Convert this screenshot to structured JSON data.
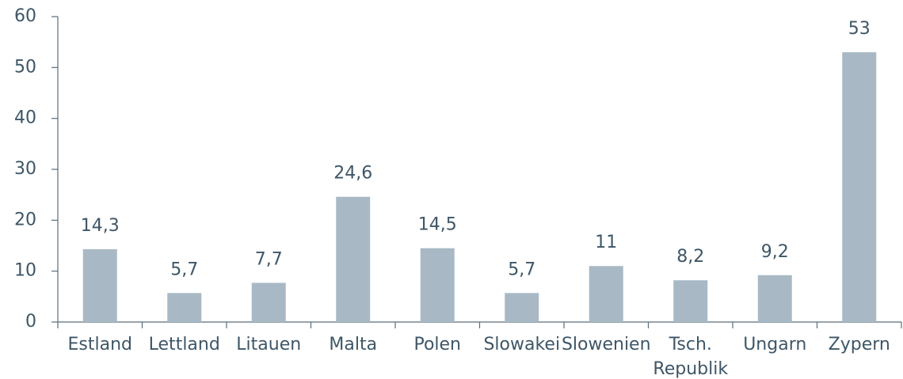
{
  "chart_data": {
    "type": "bar",
    "categories": [
      "Estland",
      "Lettland",
      "Litauen",
      "Malta",
      "Polen",
      "Slowakei",
      "Slowenien",
      "Tsch. Republik",
      "Ungarn",
      "Zypern"
    ],
    "values": [
      14.3,
      5.7,
      7.7,
      24.6,
      14.5,
      5.7,
      11,
      8.2,
      9.2,
      53
    ],
    "value_labels": [
      "14,3",
      "5,7",
      "7,7",
      "24,6",
      "14,5",
      "5,7",
      "11",
      "8,2",
      "9,2",
      "53"
    ],
    "color": "#a8b9c5",
    "ylim": [
      0,
      60
    ],
    "yticks": [
      0,
      10,
      20,
      30,
      40,
      50,
      60
    ],
    "grid": false
  }
}
